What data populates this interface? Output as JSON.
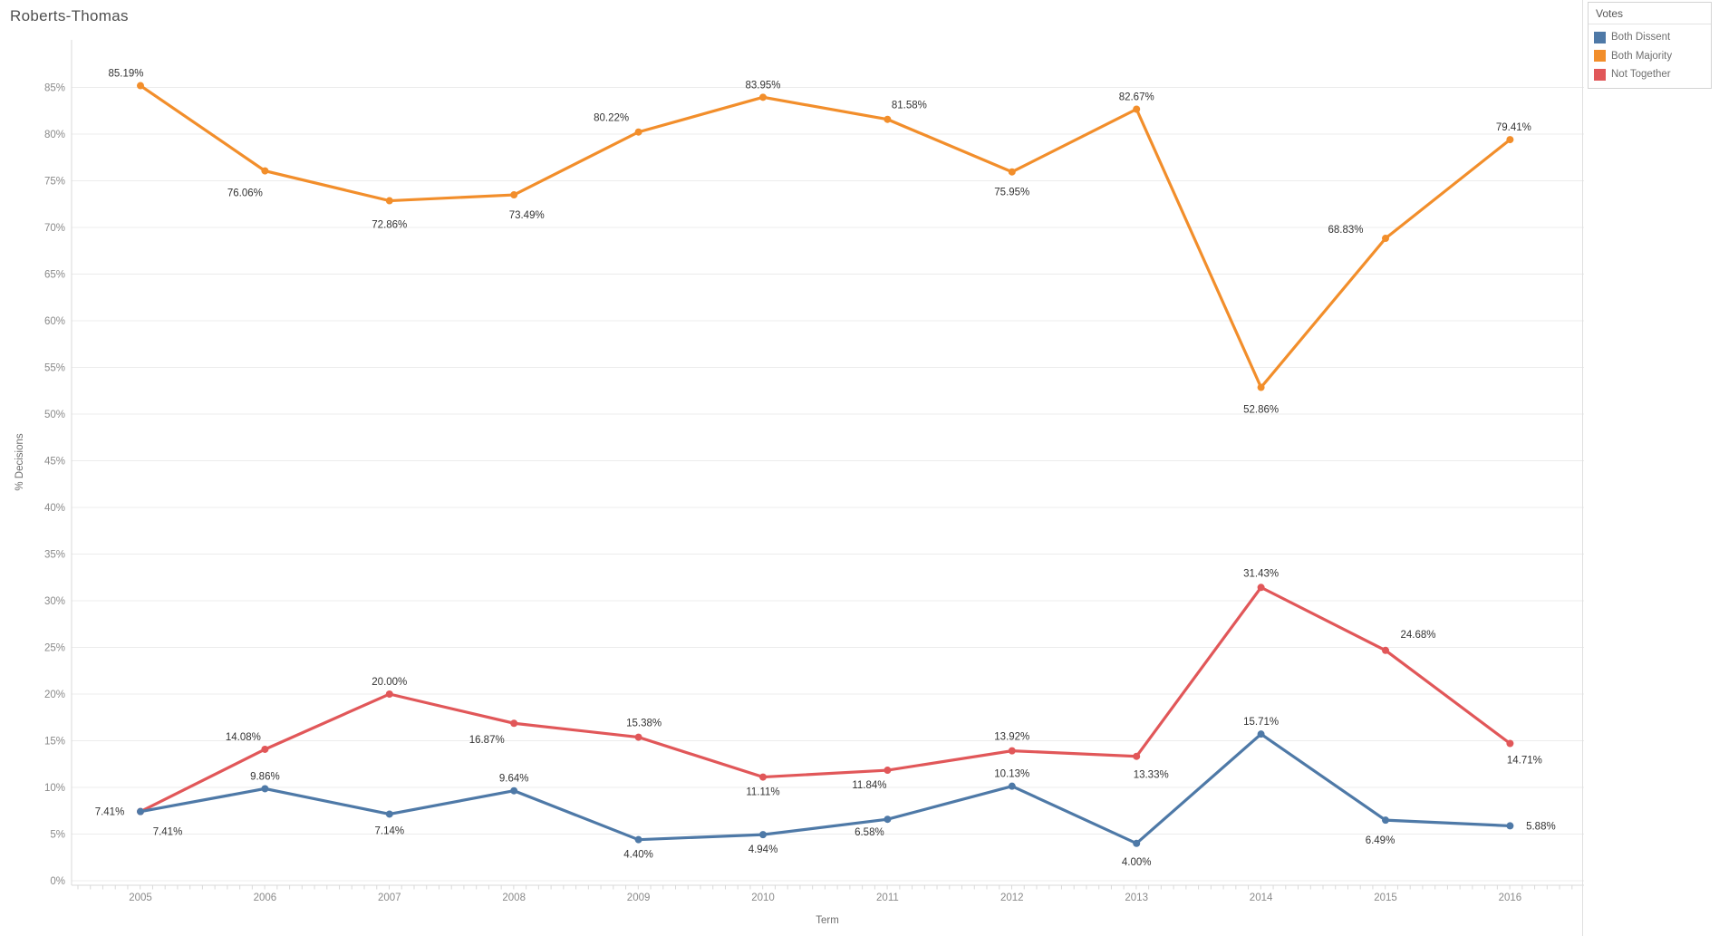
{
  "title": "Roberts-Thomas",
  "axes": {
    "x_title": "Term",
    "y_title": "% Decisions"
  },
  "legend": {
    "title": "Votes",
    "items": [
      {
        "label": "Both Dissent",
        "color": "#4e79a7"
      },
      {
        "label": "Both Majority",
        "color": "#f28e2b"
      },
      {
        "label": "Not Together",
        "color": "#e15759"
      }
    ]
  },
  "chart_data": {
    "type": "line",
    "x": [
      "2005",
      "2006",
      "2007",
      "2008",
      "2009",
      "2010",
      "2011",
      "2012",
      "2013",
      "2014",
      "2015",
      "2016"
    ],
    "y_ticks": [
      "0%",
      "5%",
      "10%",
      "15%",
      "20%",
      "25%",
      "30%",
      "35%",
      "40%",
      "45%",
      "50%",
      "55%",
      "60%",
      "65%",
      "70%",
      "75%",
      "80%",
      "85%"
    ],
    "y_tick_step": 5,
    "ylim": [
      0,
      90
    ],
    "grid": "horizontal-only",
    "legend_position": "top-right",
    "colors": {
      "grid": "#ececec",
      "axis_line": "#d9d9d9",
      "tick_text": "#8a8a8a",
      "data_label_text": "#333333"
    },
    "series": [
      {
        "name": "Both Majority",
        "color": "#f28e2b",
        "values": [
          85.19,
          76.06,
          72.86,
          73.49,
          80.22,
          83.95,
          81.58,
          75.95,
          82.67,
          52.86,
          68.83,
          79.41
        ],
        "labels": [
          "85.19%",
          "76.06%",
          "72.86%",
          "73.49%",
          "80.22%",
          "83.95%",
          "81.58%",
          "75.95%",
          "82.67%",
          "52.86%",
          "68.83%",
          "79.41%"
        ],
        "label_offsets": [
          [
            -16,
            -10
          ],
          [
            -22,
            28
          ],
          [
            0,
            30
          ],
          [
            14,
            26
          ],
          [
            -30,
            -12
          ],
          [
            0,
            -10
          ],
          [
            24,
            -12
          ],
          [
            0,
            26
          ],
          [
            0,
            -10
          ],
          [
            0,
            28
          ],
          [
            -44,
            -6
          ],
          [
            4,
            -10
          ]
        ]
      },
      {
        "name": "Not Together",
        "color": "#e15759",
        "values": [
          7.41,
          14.08,
          20.0,
          16.87,
          15.38,
          11.11,
          11.84,
          13.92,
          13.33,
          31.43,
          24.68,
          14.71
        ],
        "labels": [
          "7.41%",
          "14.08%",
          "20.00%",
          "16.87%",
          "15.38%",
          "11.11%",
          "11.84%",
          "13.92%",
          "13.33%",
          "31.43%",
          "24.68%",
          "14.71%"
        ],
        "label_offsets": [
          [
            -34,
            4
          ],
          [
            -24,
            -10
          ],
          [
            0,
            -10
          ],
          [
            -30,
            22
          ],
          [
            6,
            -12
          ],
          [
            0,
            20
          ],
          [
            -20,
            20
          ],
          [
            0,
            -12
          ],
          [
            16,
            24
          ],
          [
            0,
            -12
          ],
          [
            36,
            -14
          ],
          [
            16,
            22
          ]
        ]
      },
      {
        "name": "Both Dissent",
        "color": "#4e79a7",
        "values": [
          7.41,
          9.86,
          7.14,
          9.64,
          4.4,
          4.94,
          6.58,
          10.13,
          4.0,
          15.71,
          6.49,
          5.88
        ],
        "labels": [
          "7.41%",
          "9.86%",
          "7.14%",
          "9.64%",
          "4.40%",
          "4.94%",
          "6.58%",
          "10.13%",
          "4.00%",
          "15.71%",
          "6.49%",
          "5.88%"
        ],
        "label_offsets": [
          [
            30,
            26
          ],
          [
            0,
            -10
          ],
          [
            0,
            22
          ],
          [
            0,
            -10
          ],
          [
            0,
            20
          ],
          [
            0,
            20
          ],
          [
            -20,
            18
          ],
          [
            0,
            -10
          ],
          [
            0,
            24
          ],
          [
            0,
            -10
          ],
          [
            -6,
            26
          ],
          [
            34,
            4
          ]
        ]
      }
    ]
  }
}
